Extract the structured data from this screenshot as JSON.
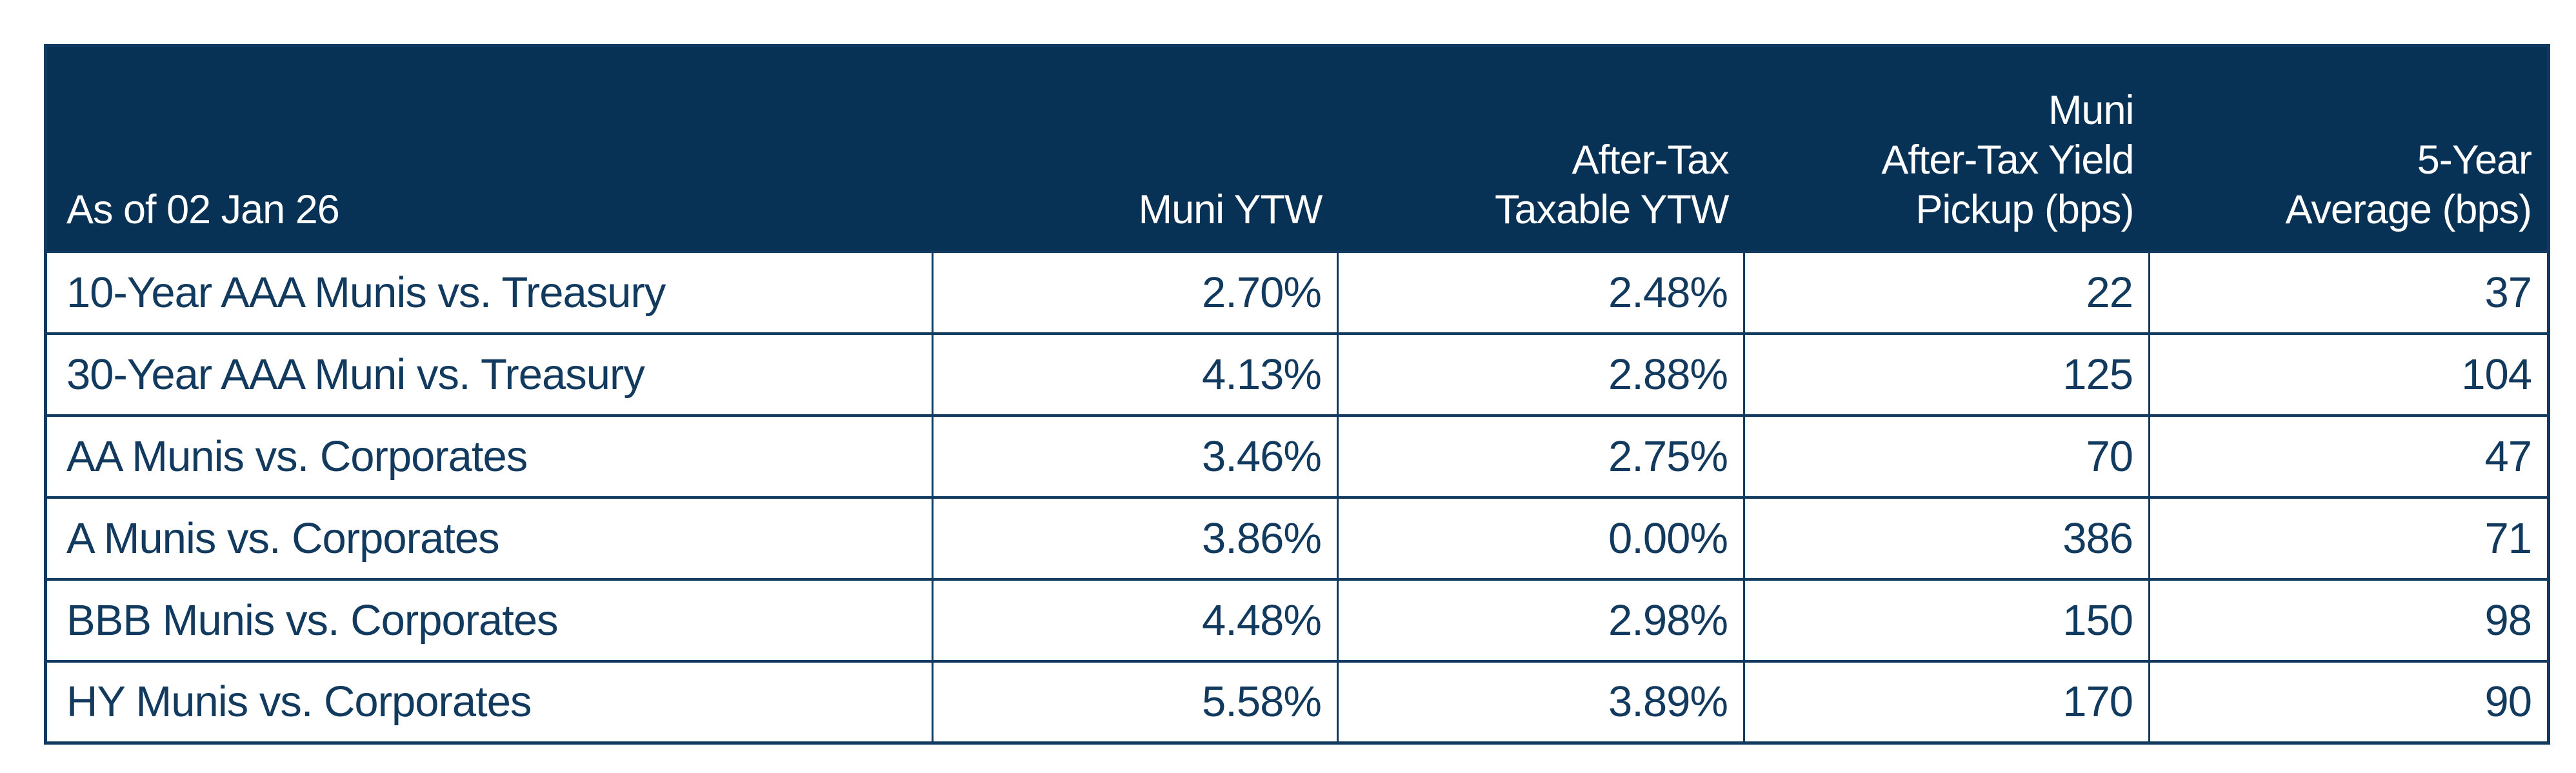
{
  "colors": {
    "page_bg": "#ffffff",
    "header_bg": "#083156",
    "header_text": "#ffffff",
    "body_text": "#123a5e",
    "border": "#123a5e"
  },
  "chart_data": {
    "type": "table",
    "corner_label": "As of 02 Jan 26",
    "column_headers": [
      "Muni YTW",
      "After-Tax\nTaxable YTW",
      "Muni\nAfter-Tax Yield\nPickup (bps)",
      "5-Year\nAverage (bps)"
    ],
    "rows": [
      {
        "label": "10-Year AAA Munis vs. Treasury",
        "values": [
          "2.70%",
          "2.48%",
          "22",
          "37"
        ]
      },
      {
        "label": "30-Year AAA Muni vs. Treasury",
        "values": [
          "4.13%",
          "2.88%",
          "125",
          "104"
        ]
      },
      {
        "label": "AA Munis vs. Corporates",
        "values": [
          "3.46%",
          "2.75%",
          "70",
          "47"
        ]
      },
      {
        "label": "A Munis vs. Corporates",
        "values": [
          "3.86%",
          "0.00%",
          "386",
          "71"
        ]
      },
      {
        "label": "BBB Munis vs. Corporates",
        "values": [
          "4.48%",
          "2.98%",
          "150",
          "98"
        ]
      },
      {
        "label": "HY Munis vs. Corporates",
        "values": [
          "5.58%",
          "3.89%",
          "170",
          "90"
        ]
      }
    ]
  }
}
